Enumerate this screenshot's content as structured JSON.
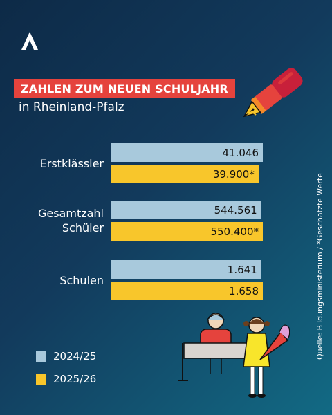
{
  "brand": {
    "logo_icon": "ard-arrow-logo-icon"
  },
  "header": {
    "title": "ZAHLEN ZUM NEUEN SCHULJAHR",
    "subtitle": "in Rheinland-Pfalz",
    "title_bg": "#e5433d"
  },
  "decor": {
    "pen_icon": "fountain-pen-icon",
    "scene_icon": "teacher-desk-and-pupil-with-schultuete-icon"
  },
  "source": "Quelle: Bildungsministerium / *Geschätzte Werte",
  "legend": [
    {
      "label": "2024/25",
      "color": "#a8c9dc"
    },
    {
      "label": "2025/26",
      "color": "#f8c62b"
    }
  ],
  "chart_data": {
    "type": "bar",
    "orientation": "horizontal",
    "categories": [
      "Erstklässler",
      "Gesamtzahl Schüler",
      "Schulen"
    ],
    "category_lines": [
      [
        "Erstklässler"
      ],
      [
        "Gesamtzahl",
        "Schüler"
      ],
      [
        "Schulen"
      ]
    ],
    "series": [
      {
        "name": "2024/25",
        "color": "#a8c9dc",
        "values": [
          41046,
          544561,
          1641
        ],
        "labels": [
          "41.046",
          "544.561",
          "1.641"
        ]
      },
      {
        "name": "2025/26",
        "color": "#f8c62b",
        "values": [
          39900,
          550400,
          1658
        ],
        "labels": [
          "39.900*",
          "550.400*",
          "1.658"
        ]
      }
    ],
    "title": "ZAHLEN ZUM NEUEN SCHULJAHR",
    "subtitle": "in Rheinland-Pfalz",
    "xlabel": "",
    "ylabel": "",
    "grid": false,
    "legend_position": "bottom-left",
    "note": "*Geschätzte Werte"
  }
}
